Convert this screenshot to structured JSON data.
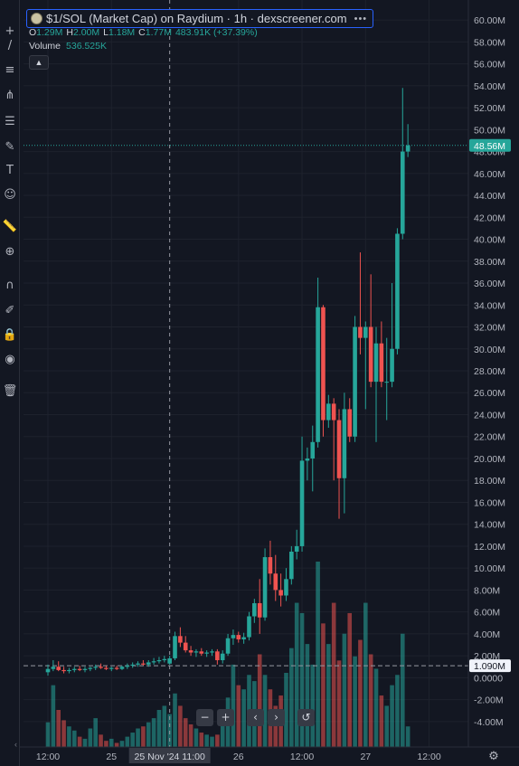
{
  "legend": {
    "title": "$1/SOL (Market Cap) on Raydium · 1h · dexscreener.com",
    "more_icon": "more-dots-icon",
    "o_label": "O",
    "o_value": "1.29M",
    "h_label": "H",
    "h_value": "2.00M",
    "l_label": "L",
    "l_value": "1.18M",
    "c_label": "C",
    "c_value": "1.77M",
    "change": "483.91K (+37.39%)",
    "volume_label": "Volume",
    "volume_value": "536.525K",
    "collapse_icon": "chevron-up-icon"
  },
  "colors": {
    "background": "#131722",
    "up": "#26a69a",
    "down": "#ef5350",
    "grid": "#1e222d",
    "text": "#d1d4dc",
    "axis_text": "#b2b5be",
    "price_label_bg": "#26a69a",
    "ref_label_bg": "#f0f3fa"
  },
  "toolbar": [
    {
      "name": "crosshair-icon",
      "glyph": "+"
    },
    {
      "name": "trend-line-icon",
      "glyph": "/"
    },
    {
      "name": "horizontal-lines-icon",
      "glyph": "≡"
    },
    {
      "name": "pitchfork-icon",
      "glyph": "⋔"
    },
    {
      "name": "fib-icon",
      "glyph": "☰"
    },
    {
      "name": "brush-icon",
      "glyph": "✎"
    },
    {
      "name": "text-icon",
      "glyph": "T"
    },
    {
      "name": "emoji-icon",
      "glyph": "☺"
    },
    {
      "name": "ruler-icon",
      "glyph": "📏"
    },
    {
      "name": "zoom-in-icon",
      "glyph": "⊕"
    },
    {
      "name": "magnet-icon",
      "glyph": "∩"
    },
    {
      "name": "lock-drawing-icon",
      "glyph": "✐"
    },
    {
      "name": "lock-icon",
      "glyph": "🔒"
    },
    {
      "name": "eye-icon",
      "glyph": "◉"
    },
    {
      "name": "trash-icon",
      "glyph": "🗑"
    }
  ],
  "nav": {
    "zoom_out_icon": "minus-icon",
    "zoom_in_icon": "plus-icon",
    "scroll_left_icon": "chevron-left-icon",
    "scroll_right_icon": "chevron-right-icon",
    "reset_icon": "reset-icon"
  },
  "chart_data": {
    "type": "candlestick",
    "y_axis_ticks": [
      "60.00M",
      "58.00M",
      "56.00M",
      "54.00M",
      "52.00M",
      "50.00M",
      "48.00M",
      "46.00M",
      "44.00M",
      "42.00M",
      "40.00M",
      "38.00M",
      "36.00M",
      "34.00M",
      "32.00M",
      "30.00M",
      "28.00M",
      "26.00M",
      "24.00M",
      "22.00M",
      "20.00M",
      "18.00M",
      "16.00M",
      "14.00M",
      "12.00M",
      "10.00M",
      "8.00M",
      "6.00M",
      "4.00M",
      "2.00M",
      "1.090M",
      "0.0000",
      "-2.00M",
      "-4.00M"
    ],
    "y_axis_values": [
      60,
      58,
      56,
      54,
      52,
      50,
      48,
      46,
      44,
      42,
      40,
      38,
      36,
      34,
      32,
      30,
      28,
      26,
      24,
      22,
      20,
      18,
      16,
      14,
      12,
      10,
      8,
      6,
      4,
      2,
      1.09,
      0,
      -2,
      -4
    ],
    "ylim": [
      -5,
      61
    ],
    "x_axis_ticks": [
      {
        "label": "12:00",
        "bar": 0
      },
      {
        "label": "25",
        "bar": 12
      },
      {
        "label": "26",
        "bar": 36
      },
      {
        "label": "12:00",
        "bar": 48
      },
      {
        "label": "27",
        "bar": 60
      },
      {
        "label": "12:00",
        "bar": 72
      }
    ],
    "crosshair_label": "25 Nov '24   11:00",
    "crosshair_bar": 23,
    "last_price": 48.56,
    "last_price_label": "48.56M",
    "reference_price": 1.09,
    "reference_price_label": "1.090M",
    "candles": [
      {
        "o": 0.5,
        "h": 1.2,
        "l": 0.2,
        "c": 0.8
      },
      {
        "o": 0.8,
        "h": 1.6,
        "l": 0.6,
        "c": 1.0
      },
      {
        "o": 1.0,
        "h": 1.5,
        "l": 0.6,
        "c": 0.7
      },
      {
        "o": 0.7,
        "h": 1.0,
        "l": 0.4,
        "c": 0.6
      },
      {
        "o": 0.6,
        "h": 0.9,
        "l": 0.4,
        "c": 0.7
      },
      {
        "o": 0.7,
        "h": 1.0,
        "l": 0.5,
        "c": 0.8
      },
      {
        "o": 0.8,
        "h": 1.1,
        "l": 0.6,
        "c": 0.7
      },
      {
        "o": 0.7,
        "h": 1.0,
        "l": 0.5,
        "c": 0.8
      },
      {
        "o": 0.8,
        "h": 1.0,
        "l": 0.6,
        "c": 0.9
      },
      {
        "o": 0.9,
        "h": 1.2,
        "l": 0.7,
        "c": 1.0
      },
      {
        "o": 1.0,
        "h": 1.3,
        "l": 0.8,
        "c": 0.9
      },
      {
        "o": 0.9,
        "h": 1.1,
        "l": 0.7,
        "c": 0.8
      },
      {
        "o": 0.8,
        "h": 1.0,
        "l": 0.6,
        "c": 0.9
      },
      {
        "o": 0.9,
        "h": 1.1,
        "l": 0.7,
        "c": 0.8
      },
      {
        "o": 0.8,
        "h": 1.1,
        "l": 0.7,
        "c": 1.0
      },
      {
        "o": 1.0,
        "h": 1.3,
        "l": 0.8,
        "c": 1.1
      },
      {
        "o": 1.1,
        "h": 1.4,
        "l": 0.9,
        "c": 1.2
      },
      {
        "o": 1.2,
        "h": 1.5,
        "l": 1.0,
        "c": 1.3
      },
      {
        "o": 1.3,
        "h": 1.6,
        "l": 1.1,
        "c": 1.2
      },
      {
        "o": 1.2,
        "h": 1.6,
        "l": 1.0,
        "c": 1.4
      },
      {
        "o": 1.4,
        "h": 1.8,
        "l": 1.2,
        "c": 1.5
      },
      {
        "o": 1.5,
        "h": 1.9,
        "l": 1.3,
        "c": 1.6
      },
      {
        "o": 1.6,
        "h": 2.0,
        "l": 1.4,
        "c": 1.7
      },
      {
        "o": 1.29,
        "h": 2.0,
        "l": 1.18,
        "c": 1.77
      },
      {
        "o": 1.77,
        "h": 4.2,
        "l": 1.6,
        "c": 3.8
      },
      {
        "o": 3.8,
        "h": 4.6,
        "l": 2.8,
        "c": 3.2
      },
      {
        "o": 3.2,
        "h": 3.8,
        "l": 2.3,
        "c": 2.5
      },
      {
        "o": 2.5,
        "h": 2.9,
        "l": 2.0,
        "c": 2.3
      },
      {
        "o": 2.3,
        "h": 2.6,
        "l": 1.9,
        "c": 2.4
      },
      {
        "o": 2.4,
        "h": 2.7,
        "l": 2.0,
        "c": 2.2
      },
      {
        "o": 2.2,
        "h": 2.5,
        "l": 1.9,
        "c": 2.3
      },
      {
        "o": 2.3,
        "h": 2.6,
        "l": 2.0,
        "c": 2.4
      },
      {
        "o": 2.4,
        "h": 2.6,
        "l": 1.2,
        "c": 1.6
      },
      {
        "o": 1.6,
        "h": 2.5,
        "l": 1.3,
        "c": 2.2
      },
      {
        "o": 2.2,
        "h": 4.0,
        "l": 2.0,
        "c": 3.6
      },
      {
        "o": 3.6,
        "h": 4.4,
        "l": 3.0,
        "c": 3.9
      },
      {
        "o": 3.9,
        "h": 4.2,
        "l": 3.2,
        "c": 3.5
      },
      {
        "o": 3.5,
        "h": 4.1,
        "l": 3.1,
        "c": 3.7
      },
      {
        "o": 3.7,
        "h": 6.0,
        "l": 3.4,
        "c": 5.6
      },
      {
        "o": 5.6,
        "h": 7.2,
        "l": 5.0,
        "c": 6.8
      },
      {
        "o": 6.8,
        "h": 9.0,
        "l": 4.0,
        "c": 5.5
      },
      {
        "o": 5.5,
        "h": 11.8,
        "l": 5.2,
        "c": 11.0
      },
      {
        "o": 11.0,
        "h": 12.5,
        "l": 8.5,
        "c": 9.5
      },
      {
        "o": 9.5,
        "h": 11.2,
        "l": 7.0,
        "c": 8.0
      },
      {
        "o": 8.0,
        "h": 9.5,
        "l": 6.5,
        "c": 7.5
      },
      {
        "o": 7.5,
        "h": 10.0,
        "l": 7.0,
        "c": 9.0
      },
      {
        "o": 9.0,
        "h": 12.0,
        "l": 8.5,
        "c": 11.5
      },
      {
        "o": 11.5,
        "h": 13.5,
        "l": 10.8,
        "c": 12.0
      },
      {
        "o": 12.0,
        "h": 22.0,
        "l": 11.5,
        "c": 19.8
      },
      {
        "o": 19.8,
        "h": 21.0,
        "l": 18.0,
        "c": 20.0
      },
      {
        "o": 20.0,
        "h": 23.0,
        "l": 17.0,
        "c": 21.5
      },
      {
        "o": 21.5,
        "h": 36.5,
        "l": 21.0,
        "c": 33.8
      },
      {
        "o": 33.8,
        "h": 34.0,
        "l": 22.0,
        "c": 23.5
      },
      {
        "o": 23.5,
        "h": 25.8,
        "l": 22.8,
        "c": 25.0
      },
      {
        "o": 25.0,
        "h": 25.5,
        "l": 18.0,
        "c": 23.5
      },
      {
        "o": 23.5,
        "h": 24.5,
        "l": 14.5,
        "c": 18.2
      },
      {
        "o": 18.2,
        "h": 26.0,
        "l": 15.0,
        "c": 24.5
      },
      {
        "o": 24.5,
        "h": 25.5,
        "l": 21.5,
        "c": 22.0
      },
      {
        "o": 22.0,
        "h": 33.0,
        "l": 21.5,
        "c": 32.0
      },
      {
        "o": 32.0,
        "h": 38.8,
        "l": 29.5,
        "c": 31.0
      },
      {
        "o": 31.0,
        "h": 32.5,
        "l": 24.5,
        "c": 32.0
      },
      {
        "o": 32.0,
        "h": 36.8,
        "l": 26.5,
        "c": 27.0
      },
      {
        "o": 27.0,
        "h": 32.0,
        "l": 21.5,
        "c": 30.5
      },
      {
        "o": 30.5,
        "h": 32.5,
        "l": 26.5,
        "c": 27.0
      },
      {
        "o": 27.0,
        "h": 31.0,
        "l": 23.5,
        "c": 27.0
      },
      {
        "o": 27.0,
        "h": 36.0,
        "l": 26.5,
        "c": 30.0
      },
      {
        "o": 30.0,
        "h": 41.0,
        "l": 29.5,
        "c": 40.5
      },
      {
        "o": 40.5,
        "h": 53.8,
        "l": 40.0,
        "c": 48.0
      },
      {
        "o": 48.0,
        "h": 50.5,
        "l": 47.5,
        "c": 48.56
      }
    ],
    "volumes": [
      1.2,
      3.0,
      1.8,
      1.3,
      1.0,
      0.8,
      0.5,
      0.4,
      0.9,
      1.4,
      0.6,
      0.3,
      0.4,
      0.2,
      0.3,
      0.5,
      0.7,
      0.9,
      1.0,
      1.2,
      1.4,
      1.8,
      2.0,
      1.6,
      2.6,
      2.0,
      1.4,
      1.1,
      0.9,
      0.7,
      0.6,
      0.5,
      0.6,
      1.2,
      2.4,
      4.0,
      3.0,
      2.8,
      3.5,
      3.2,
      4.5,
      3.5,
      2.8,
      2.0,
      2.5,
      3.6,
      4.8,
      7.0,
      6.5,
      5.0,
      4.0,
      9.0,
      6.0,
      5.0,
      7.0,
      4.2,
      5.5,
      6.5,
      4.4,
      5.2,
      7.0,
      4.5,
      3.8,
      2.5,
      2.0,
      3.0,
      3.5,
      5.5,
      1.0
    ],
    "volume_scale_max": 9.0
  }
}
